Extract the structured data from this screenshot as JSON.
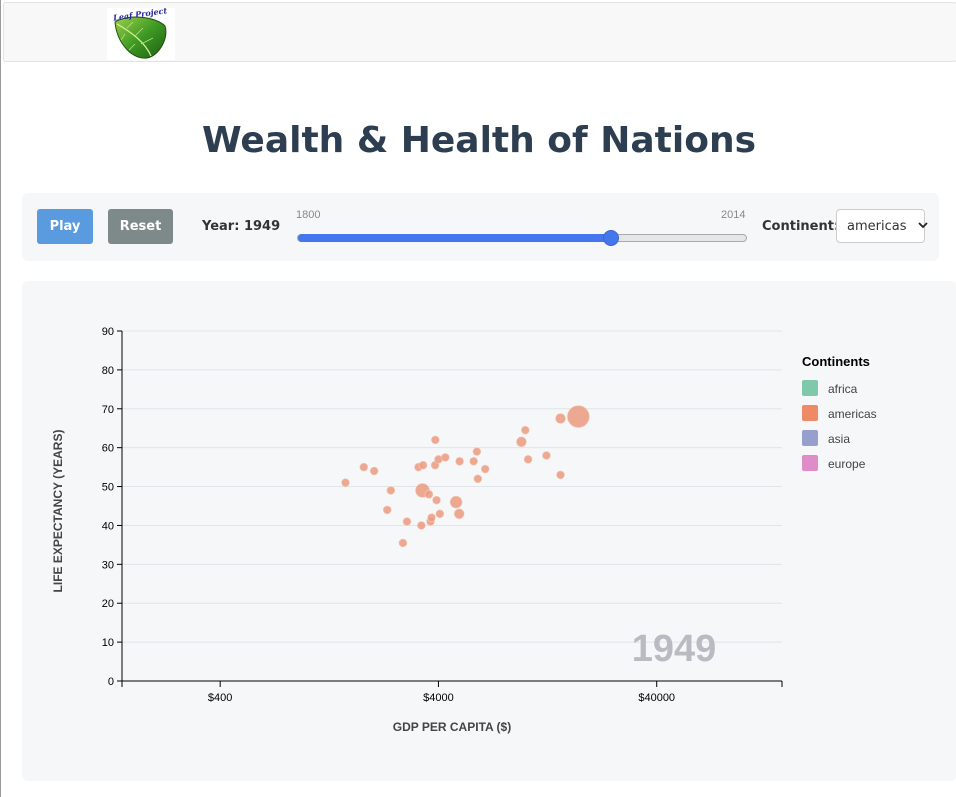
{
  "page": {
    "title": "Wealth & Health of Nations"
  },
  "navbar": {
    "logo_text": "Leaf Project"
  },
  "controls": {
    "play_label": "Play",
    "reset_label": "Reset",
    "year_label": "Year: 1949",
    "slider_min": "1800",
    "slider_max": "2014",
    "slider_value": 1949,
    "continent_label": "Continent:",
    "continent_selected": "americas"
  },
  "chart_data": {
    "type": "scatter",
    "title": "",
    "xlabel": "GDP PER CAPITA ($)",
    "ylabel": "LIFE EXPECTANCY (YEARS)",
    "x_scale": "log",
    "xlim": [
      142,
      150000
    ],
    "ylim": [
      0,
      90
    ],
    "x_ticks": [
      400,
      4000,
      40000
    ],
    "x_tick_labels": [
      "$400",
      "$4000",
      "$40000"
    ],
    "y_ticks": [
      0,
      10,
      20,
      30,
      40,
      50,
      60,
      70,
      80,
      90
    ],
    "grid": "horizontal",
    "year_watermark": "1949",
    "legend": {
      "title": "Continents",
      "placement": "right",
      "items": [
        {
          "name": "africa",
          "color": "#7fc8a9"
        },
        {
          "name": "americas",
          "color": "#ee8b66"
        },
        {
          "name": "asia",
          "color": "#96a0cc"
        },
        {
          "name": "europe",
          "color": "#e08cc8"
        }
      ]
    },
    "series": [
      {
        "name": "americas",
        "color": "#eb9a80",
        "points": [
          {
            "x": 1500,
            "y": 51,
            "r": 4
          },
          {
            "x": 1820,
            "y": 55,
            "r": 4
          },
          {
            "x": 2030,
            "y": 54,
            "r": 4
          },
          {
            "x": 2420,
            "y": 49,
            "r": 4
          },
          {
            "x": 2330,
            "y": 44,
            "r": 4
          },
          {
            "x": 2750,
            "y": 35.5,
            "r": 4
          },
          {
            "x": 2870,
            "y": 41,
            "r": 4
          },
          {
            "x": 3240,
            "y": 55,
            "r": 4
          },
          {
            "x": 3400,
            "y": 55.5,
            "r": 4
          },
          {
            "x": 3340,
            "y": 40,
            "r": 4
          },
          {
            "x": 3380,
            "y": 49,
            "r": 7
          },
          {
            "x": 3620,
            "y": 48,
            "r": 4
          },
          {
            "x": 3680,
            "y": 41,
            "r": 4
          },
          {
            "x": 3720,
            "y": 42,
            "r": 4
          },
          {
            "x": 3870,
            "y": 62,
            "r": 4
          },
          {
            "x": 3860,
            "y": 55.5,
            "r": 4
          },
          {
            "x": 3920,
            "y": 46.5,
            "r": 4
          },
          {
            "x": 4000,
            "y": 57,
            "r": 4
          },
          {
            "x": 4060,
            "y": 43,
            "r": 4
          },
          {
            "x": 4300,
            "y": 57.5,
            "r": 4
          },
          {
            "x": 4820,
            "y": 46,
            "r": 6
          },
          {
            "x": 5000,
            "y": 56.5,
            "r": 4
          },
          {
            "x": 4980,
            "y": 43,
            "r": 5
          },
          {
            "x": 5800,
            "y": 56.5,
            "r": 4
          },
          {
            "x": 6000,
            "y": 59,
            "r": 4
          },
          {
            "x": 6060,
            "y": 52,
            "r": 4
          },
          {
            "x": 6550,
            "y": 54.5,
            "r": 4
          },
          {
            "x": 9600,
            "y": 61.5,
            "r": 5
          },
          {
            "x": 10000,
            "y": 64.5,
            "r": 4
          },
          {
            "x": 10300,
            "y": 57,
            "r": 4
          },
          {
            "x": 12500,
            "y": 58,
            "r": 4
          },
          {
            "x": 14500,
            "y": 67.5,
            "r": 5
          },
          {
            "x": 14500,
            "y": 53,
            "r": 4
          },
          {
            "x": 17500,
            "y": 68,
            "r": 11
          }
        ]
      }
    ]
  }
}
